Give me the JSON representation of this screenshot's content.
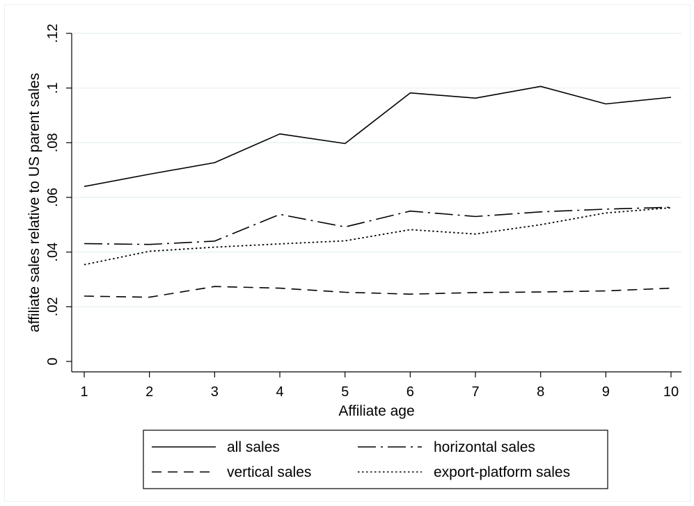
{
  "chart_data": {
    "type": "line",
    "title": "",
    "xlabel": "Affiliate age",
    "ylabel": "affiliate sales relative to US parent sales",
    "x": [
      1,
      2,
      3,
      4,
      5,
      6,
      7,
      8,
      9,
      10
    ],
    "xticks": [
      "1",
      "2",
      "3",
      "4",
      "5",
      "6",
      "7",
      "8",
      "9",
      "10"
    ],
    "xlim": [
      1,
      10
    ],
    "ylim": [
      0,
      0.12
    ],
    "yticks": [
      0,
      0.02,
      0.04,
      0.06,
      0.08,
      0.1,
      0.12
    ],
    "ytick_labels": [
      "0",
      ".02",
      ".04",
      ".06",
      ".08",
      ".1",
      ".12"
    ],
    "grid": true,
    "legend_position": "bottom",
    "series": [
      {
        "name": "all sales",
        "style": "solid",
        "values": [
          0.064,
          0.0685,
          0.0727,
          0.0832,
          0.0797,
          0.0982,
          0.0963,
          0.1006,
          0.0942,
          0.0966
        ]
      },
      {
        "name": "horizontal sales",
        "style": "longdashdot",
        "values": [
          0.0431,
          0.0428,
          0.044,
          0.0538,
          0.0492,
          0.055,
          0.053,
          0.0547,
          0.0557,
          0.0564
        ]
      },
      {
        "name": "vertical sales",
        "style": "dash",
        "values": [
          0.0239,
          0.0235,
          0.0274,
          0.0268,
          0.0253,
          0.0246,
          0.0252,
          0.0254,
          0.0258,
          0.0268
        ]
      },
      {
        "name": "export-platform sales",
        "style": "dot",
        "values": [
          0.0354,
          0.0403,
          0.0418,
          0.043,
          0.0441,
          0.0482,
          0.0466,
          0.05,
          0.0543,
          0.0562
        ]
      }
    ],
    "colors": {
      "line": "#000000",
      "grid": "#eaf2f3",
      "background": "#ffffff"
    }
  }
}
